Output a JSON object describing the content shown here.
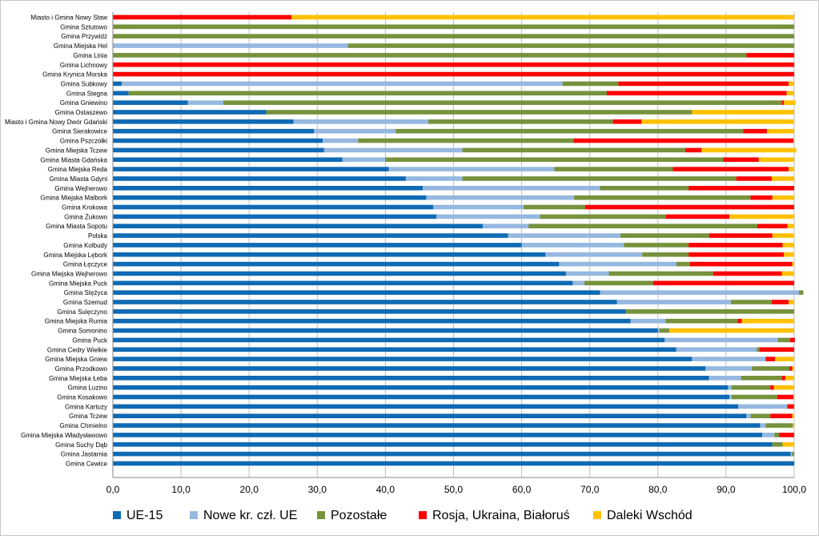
{
  "chart_data": {
    "type": "bar",
    "orientation": "horizontal",
    "stacked": true,
    "title": "",
    "xlabel": "",
    "ylabel": "",
    "xlim": [
      0,
      100
    ],
    "x_ticks": [
      "0,0",
      "10,0",
      "20,0",
      "30,0",
      "40,0",
      "50,0",
      "60,0",
      "70,0",
      "80,0",
      "90,0",
      "100,0"
    ],
    "grid": "vertical",
    "legend_position": "bottom",
    "categories": [
      "Miasto i Gmina Nowy Staw",
      "Gmina Sztutowo",
      "Gmina Przywidz",
      "Gmina Miejska Hel",
      "Gmina Linia",
      "Gmina Lichnowy",
      "Gmina Krynica Morska",
      "Gmina Subkowy",
      "Gmina Stegna",
      "Gmina Gniewino",
      "Gmina Ostaszewo",
      "Miasto i Gmina Nowy Dwór Gdański",
      "Gmina Sierakowice",
      "Gmina Pszczółki",
      "Gmina Miejska Tczew",
      "Gmina Miasta Gdańska",
      "Gmina Miejska Reda",
      "Gmina Miasta Gdyni",
      "Gmina Wejherowo",
      "Gmina Miejska Malbork",
      "Gmina Krokowa",
      "Gmina Żukowo",
      "Gmina Miasta Sopotu",
      "Polska",
      "Gmina Kolbudy",
      "Gmina Miejska Lębork",
      "Gmina Łęczyce",
      "Gmina Miejska Wejherowo",
      "Gmina Miejska Puck",
      "Gmina Stężyca",
      "Gmina Szemud",
      "Gmina Sulęczyno",
      "Gmina Miejska Rumia",
      "Gmina Somonino",
      "Gmina Puck",
      "Gmina Cedry Wielkie",
      "Gmina Miejska Gniew",
      "Gmina Przodkowo",
      "Gmina Miejska Łeba",
      "Gmina Luzino",
      "Gmina Kosakowo",
      "Gmina Kartuzy",
      "Gmina Tczew",
      "Gmina Chmielno",
      "Gmina Miejska Władysławowo",
      "Gmina Suchy Dąb",
      "Gmina Jastarnia",
      "Gmina Cewice"
    ],
    "series": [
      {
        "name": "UE-15",
        "color": "#0e6ab4",
        "values": [
          0,
          0,
          0,
          0,
          0,
          0,
          0,
          1.3,
          2.3,
          11,
          22.5,
          26.5,
          29.5,
          30.8,
          31,
          33.7,
          40.5,
          43,
          45.5,
          46,
          47,
          47.5,
          54.3,
          58,
          60,
          63.5,
          65.5,
          66.5,
          67.5,
          71.5,
          74,
          75.3,
          76,
          80,
          81,
          82.7,
          85,
          87,
          87.5,
          90.3,
          90.5,
          91.8,
          93,
          95,
          95.3,
          96.8,
          99.5,
          100
        ]
      },
      {
        "name": "Nowe kr. czł. UE",
        "color": "#95b8e0",
        "values": [
          0,
          0,
          0,
          34.5,
          0,
          0,
          0,
          64.7,
          0,
          5.2,
          0,
          19.8,
          12,
          5.2,
          20.3,
          6.3,
          24.3,
          8.3,
          26,
          21.7,
          13.3,
          15.2,
          6.7,
          16.5,
          15,
          14.2,
          17.2,
          6.3,
          1.7,
          29.2,
          16.7,
          0,
          5.1,
          0.2,
          16.6,
          11.8,
          10.8,
          6.8,
          4.7,
          0.5,
          0.3,
          7.2,
          0.6,
          0.8,
          1.8,
          0,
          0.2,
          0
        ]
      },
      {
        "name": "Pozostałe",
        "color": "#76923c",
        "values": [
          0,
          100,
          100,
          65.5,
          93,
          0,
          0,
          8.2,
          70.2,
          82,
          62.5,
          27.1,
          51,
          31.6,
          32.7,
          49.6,
          17.4,
          40.2,
          13,
          25.9,
          9,
          18.5,
          33.6,
          13,
          9.5,
          6.8,
          2,
          15.3,
          10.1,
          0.6,
          6,
          24.7,
          10.6,
          1.5,
          1.8,
          0.4,
          0,
          5.5,
          6,
          5.7,
          6.7,
          0,
          2.9,
          4,
          0.7,
          1.5,
          0.3,
          0
        ]
      },
      {
        "name": "Rosja, Ukraina, Białoruś",
        "color": "#ff0000",
        "values": [
          26.2,
          0,
          0,
          0,
          7,
          100,
          100,
          25,
          26.4,
          0.3,
          0,
          4.2,
          3.5,
          32.3,
          2.4,
          5.2,
          17,
          5.2,
          15.5,
          3.2,
          30.7,
          9.3,
          4.4,
          9.3,
          13.8,
          14,
          15,
          10.1,
          20.7,
          0,
          2.5,
          0,
          0.6,
          0,
          0.7,
          5.1,
          1.4,
          0.4,
          0.5,
          0.5,
          2.4,
          1,
          3.2,
          0,
          2.2,
          0,
          0,
          0
        ]
      },
      {
        "name": "Daleki Wschód",
        "color": "#ffc000",
        "values": [
          73.8,
          0,
          0,
          0,
          0,
          0,
          0,
          0.8,
          1.1,
          1.7,
          15,
          22.4,
          4,
          0.1,
          13.9,
          5.2,
          0.8,
          3.3,
          0,
          3.2,
          0,
          9.5,
          1,
          3.2,
          1.7,
          1.5,
          0.3,
          1.8,
          0,
          0.1,
          0.8,
          0,
          7.7,
          18.3,
          0,
          0,
          2.8,
          0.3,
          1.3,
          3,
          0.1,
          0,
          0.3,
          0.2,
          0,
          1.7,
          0,
          0
        ]
      }
    ]
  }
}
